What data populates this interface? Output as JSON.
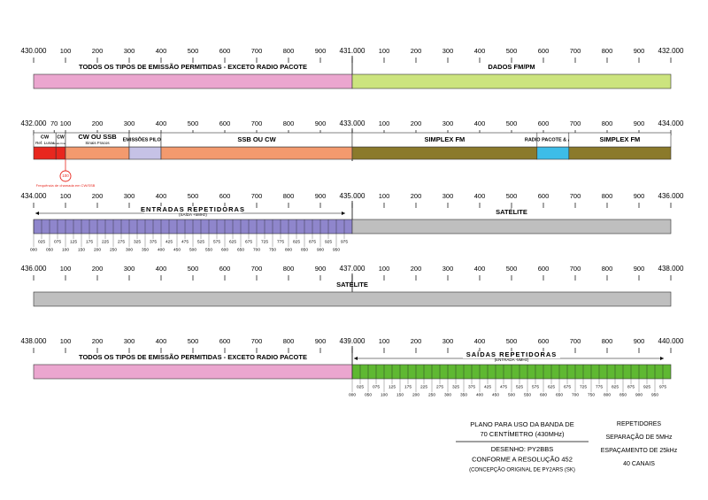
{
  "rows": [
    {
      "ticks": [
        "430.000",
        "100",
        "200",
        "300",
        "400",
        "500",
        "600",
        "700",
        "800",
        "900",
        "431.000",
        "100",
        "200",
        "300",
        "400",
        "500",
        "600",
        "700",
        "800",
        "900",
        "432.000"
      ],
      "segments": [
        {
          "label": "TODOS OS TIPOS DE EMISSÃO PERMITIDAS - EXCETO RADIO PACOTE",
          "from": 0,
          "to": 1000,
          "color": "#eba6cf"
        },
        {
          "label": "DADOS FM/PM",
          "from": 1000,
          "to": 2000,
          "color": "#cce47e"
        }
      ]
    },
    {
      "ticks": [
        "432.000",
        "70",
        "100",
        "200",
        "300",
        "400",
        "500",
        "600",
        "700",
        "800",
        "900",
        "433.000",
        "100",
        "200",
        "300",
        "400",
        "500",
        "600",
        "700",
        "800",
        "900",
        "434.000"
      ],
      "segments": [
        {
          "label": "CW",
          "sublabel": "Ref. Lunar",
          "from": 0,
          "to": 70,
          "color": "#e8271e"
        },
        {
          "label": "CW",
          "sublabel": "Sinais Fracos",
          "from": 70,
          "to": 100,
          "color": "#e8271e"
        },
        {
          "label": "CW OU SSB",
          "sublabel": "Sinais Fracos",
          "from": 100,
          "to": 300,
          "color": "#f39a6e"
        },
        {
          "label": "EMISSÕES PILOTO",
          "from": 300,
          "to": 400,
          "color": "#c6c2e6"
        },
        {
          "label": "SSB OU CW",
          "from": 400,
          "to": 1000,
          "color": "#f39a6e"
        },
        {
          "label": "SIMPLEX FM",
          "from": 1000,
          "to": 1580,
          "color": "#8b7a2b"
        },
        {
          "label": "RADIO PACOTE & APRS",
          "from": 1580,
          "to": 1680,
          "color": "#3dbde8"
        },
        {
          "label": "SIMPLEX FM",
          "from": 1680,
          "to": 2000,
          "color": "#8b7a2b"
        }
      ],
      "calling": {
        "at": 100,
        "label": "100",
        "note": "Frequência de chamada em CW/SSB"
      }
    },
    {
      "ticks": [
        "434.000",
        "100",
        "200",
        "300",
        "400",
        "500",
        "600",
        "700",
        "800",
        "900",
        "435.000",
        "100",
        "200",
        "300",
        "400",
        "500",
        "600",
        "700",
        "800",
        "900",
        "436.000"
      ],
      "segments": [
        {
          "label": "ENTRADAS REPETIDORAS",
          "sublabel": "(SAÍDA +5MHz)",
          "from": 0,
          "to": 1000,
          "color": "#8f86cc",
          "channels": true
        },
        {
          "label": "SATÉLITE",
          "from": 1000,
          "to": 2000,
          "color": "#bfbfbf"
        }
      ]
    },
    {
      "ticks": [
        "436.000",
        "100",
        "200",
        "300",
        "400",
        "500",
        "600",
        "700",
        "800",
        "900",
        "437.000",
        "100",
        "200",
        "300",
        "400",
        "500",
        "600",
        "700",
        "800",
        "900",
        "438.000"
      ],
      "segments": [
        {
          "label": "SATÉLITE",
          "from": 0,
          "to": 2000,
          "color": "#bfbfbf"
        }
      ]
    },
    {
      "ticks": [
        "438.000",
        "100",
        "200",
        "300",
        "400",
        "500",
        "600",
        "700",
        "800",
        "900",
        "439.000",
        "100",
        "200",
        "300",
        "400",
        "500",
        "600",
        "700",
        "800",
        "900",
        "440.000"
      ],
      "segments": [
        {
          "label": "TODOS OS TIPOS DE EMISSÃO PERMITIDAS - EXCETO RADIO PACOTE",
          "from": 0,
          "to": 1000,
          "color": "#eba6cf"
        },
        {
          "label": "SAÍDAS REPETIDORAS",
          "sublabel": "(ENTRADA -5MHz)",
          "from": 1000,
          "to": 2000,
          "color": "#5fb832",
          "channels": true
        }
      ]
    }
  ],
  "channel_labels": [
    "000",
    "025",
    "050",
    "075",
    "100",
    "125",
    "150",
    "175",
    "200",
    "225",
    "250",
    "275",
    "300",
    "325",
    "350",
    "375",
    "400",
    "425",
    "450",
    "475",
    "500",
    "525",
    "550",
    "575",
    "600",
    "625",
    "650",
    "675",
    "700",
    "725",
    "750",
    "775",
    "800",
    "825",
    "850",
    "875",
    "900",
    "925",
    "950",
    "975"
  ],
  "footer": {
    "title": [
      "PLANO PARA USO DA BANDA DE",
      "70 CENTÍMETRO (430MHz)"
    ],
    "credits": [
      "DESENHO:  PY2BBS",
      "CONFORME A RESOLUÇÃO 452",
      "(CONCEPÇÃO ORIGINAL DE PY2ARS (SK)"
    ],
    "notes": [
      "REPETIDORES",
      "SEPARAÇÃO DE 5MHz",
      "ESPAÇAMENTO DE 25kHz",
      "40 CANAIS"
    ]
  }
}
